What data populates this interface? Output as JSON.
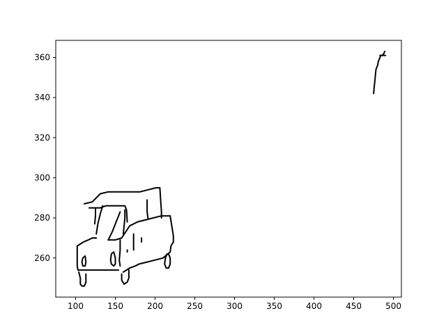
{
  "chart_data": {
    "type": "line",
    "title": "",
    "xlabel": "",
    "ylabel": "",
    "xlim": [
      75,
      510
    ],
    "ylim": [
      240.5,
      368.5
    ],
    "xticks": [
      100,
      150,
      200,
      250,
      300,
      350,
      400,
      450,
      500
    ],
    "yticks": [
      260,
      280,
      300,
      320,
      340,
      360
    ],
    "grid": false,
    "line_color": "#000000",
    "series": [
      {
        "points": [
          [
            111,
            287
          ],
          [
            121,
            288
          ],
          [
            131,
            292
          ],
          [
            141,
            293
          ],
          [
            151,
            293
          ],
          [
            161,
            293
          ],
          [
            171,
            293
          ],
          [
            181,
            293
          ],
          [
            191,
            294
          ],
          [
            201,
            295
          ],
          [
            206,
            295
          ]
        ]
      },
      {
        "points": [
          [
            117,
            285
          ],
          [
            124,
            285
          ],
          [
            131,
            285
          ],
          [
            138,
            286
          ],
          [
            145,
            286
          ],
          [
            155,
            286
          ],
          [
            161,
            286
          ]
        ]
      },
      {
        "points": [
          [
            124,
            277
          ],
          [
            125,
            281
          ],
          [
            125,
            285
          ]
        ]
      },
      {
        "points": [
          [
            134,
            286
          ],
          [
            131,
            282
          ],
          [
            128,
            277
          ],
          [
            126,
            272
          ]
        ]
      },
      {
        "points": [
          [
            156,
            283
          ],
          [
            151,
            278
          ],
          [
            146,
            273
          ],
          [
            141,
            269
          ]
        ]
      },
      {
        "points": [
          [
            162,
            284
          ],
          [
            162,
            280
          ],
          [
            161,
            276
          ],
          [
            160,
            272
          ]
        ]
      },
      {
        "points": [
          [
            206,
            295
          ],
          [
            207,
            289
          ],
          [
            208,
            283
          ],
          [
            208,
            280
          ]
        ]
      },
      {
        "points": [
          [
            162,
            286
          ],
          [
            164,
            284
          ],
          [
            165,
            278
          ]
        ]
      },
      {
        "points": [
          [
            190,
            289
          ],
          [
            190,
            283
          ],
          [
            191,
            280
          ]
        ]
      },
      {
        "points": [
          [
            158,
            270
          ],
          [
            163,
            273
          ],
          [
            168,
            276
          ],
          [
            178,
            278
          ],
          [
            188,
            279
          ],
          [
            198,
            280
          ],
          [
            208,
            281
          ],
          [
            216,
            281
          ],
          [
            219,
            281
          ]
        ]
      },
      {
        "points": [
          [
            102,
            266
          ],
          [
            106,
            267
          ],
          [
            110,
            268
          ],
          [
            116,
            269
          ],
          [
            121,
            270
          ],
          [
            126,
            270
          ]
        ]
      },
      {
        "points": [
          [
            158,
            270
          ],
          [
            150,
            269
          ],
          [
            145,
            269
          ],
          [
            141,
            269
          ]
        ]
      },
      {
        "points": [
          [
            156,
            269
          ],
          [
            156,
            264
          ],
          [
            155,
            259
          ],
          [
            156,
            256
          ]
        ]
      },
      {
        "points": [
          [
            219,
            281
          ],
          [
            221,
            276
          ],
          [
            223,
            271
          ],
          [
            223,
            268
          ]
        ]
      },
      {
        "points": [
          [
            223,
            268
          ],
          [
            220,
            266
          ],
          [
            219,
            263
          ],
          [
            210,
            260
          ],
          [
            200,
            259
          ],
          [
            190,
            258
          ],
          [
            180,
            257
          ],
          [
            175,
            256
          ],
          [
            168,
            255
          ],
          [
            164,
            254
          ],
          [
            160,
            253
          ]
        ]
      },
      {
        "points": [
          [
            102,
            266
          ],
          [
            102,
            261
          ],
          [
            102,
            256
          ],
          [
            103,
            254
          ]
        ]
      },
      {
        "points": [
          [
            103,
            254
          ],
          [
            108,
            254
          ],
          [
            114,
            254
          ],
          [
            120,
            254
          ],
          [
            130,
            254
          ],
          [
            140,
            254
          ],
          [
            148,
            254
          ],
          [
            151,
            254
          ],
          [
            154,
            254
          ]
        ]
      },
      {
        "points": [
          [
            104,
            253
          ],
          [
            106,
            250
          ],
          [
            106,
            247
          ],
          [
            108,
            246
          ],
          [
            111,
            246
          ],
          [
            113,
            248
          ],
          [
            113,
            252
          ]
        ]
      },
      {
        "points": [
          [
            112,
            261
          ],
          [
            109,
            260
          ],
          [
            108,
            258
          ],
          [
            109,
            256
          ],
          [
            112,
            256
          ],
          [
            113,
            258
          ],
          [
            112,
            261
          ]
        ]
      },
      {
        "points": [
          [
            148,
            263
          ],
          [
            145,
            262
          ],
          [
            144,
            259
          ],
          [
            145,
            257
          ],
          [
            148,
            256
          ],
          [
            150,
            257
          ],
          [
            150,
            260
          ],
          [
            148,
            263
          ]
        ]
      },
      {
        "points": [
          [
            158,
            252
          ],
          [
            158,
            249
          ],
          [
            161,
            247
          ],
          [
            165,
            248
          ],
          [
            167,
            250
          ],
          [
            167,
            254
          ]
        ]
      },
      {
        "points": [
          [
            215,
            262
          ],
          [
            213,
            260
          ],
          [
            212,
            257
          ],
          [
            214,
            255
          ],
          [
            217,
            255
          ],
          [
            219,
            257
          ],
          [
            219,
            260
          ],
          [
            217,
            262
          ]
        ]
      },
      {
        "points": [
          [
            173,
            272
          ],
          [
            173,
            268
          ],
          [
            173,
            264
          ]
        ]
      },
      {
        "points": [
          [
            165,
            264
          ],
          [
            165,
            263
          ]
        ]
      },
      {
        "points": [
          [
            183,
            270
          ],
          [
            183,
            268
          ]
        ]
      },
      {
        "points": [
          [
            475,
            342
          ],
          [
            476,
            346
          ],
          [
            477,
            350
          ],
          [
            478,
            354
          ],
          [
            480,
            356
          ],
          [
            481,
            358
          ],
          [
            482,
            359
          ],
          [
            484,
            361
          ],
          [
            486,
            361
          ],
          [
            488,
            362
          ],
          [
            489,
            363
          ]
        ]
      },
      {
        "points": [
          [
            483,
            361
          ],
          [
            487,
            361
          ],
          [
            488,
            361
          ],
          [
            490,
            361
          ]
        ]
      }
    ]
  }
}
